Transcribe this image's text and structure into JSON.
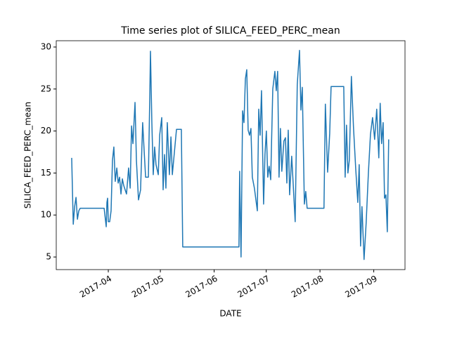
{
  "chart_data": {
    "type": "line",
    "title": "Time series plot of SILICA_FEED_PERC_mean",
    "x_label": "DATE",
    "y_label": "SILICA_FEED_PERC_mean",
    "xlim": [
      61,
      262
    ],
    "xticks": [
      {
        "value": 91,
        "label": "2017-04"
      },
      {
        "value": 121,
        "label": "2017-05"
      },
      {
        "value": 152,
        "label": "2017-06"
      },
      {
        "value": 182,
        "label": "2017-07"
      },
      {
        "value": 213,
        "label": "2017-08"
      },
      {
        "value": 244,
        "label": "2017-09"
      }
    ],
    "ylim": [
      3.5,
      30.75
    ],
    "yticks": [
      5,
      10,
      15,
      20,
      25,
      30
    ],
    "grid": false,
    "x": [
      69.9,
      70.8,
      71.6,
      72.4,
      73.2,
      74,
      74.8,
      88.6,
      89.8,
      90.2,
      90.6,
      91,
      91.8,
      92.6,
      93.4,
      94.2,
      95,
      95.9,
      96.7,
      97.5,
      98.3,
      99.1,
      99.9,
      101.5,
      102.7,
      103.6,
      104.4,
      105.2,
      106.4,
      107.2,
      108.4,
      109.6,
      110.8,
      111.7,
      112.5,
      114.1,
      114.9,
      115.3,
      116.1,
      116.9,
      117.7,
      118.5,
      119.8,
      120.6,
      121.8,
      122.6,
      123.4,
      124.2,
      125,
      126.2,
      127.1,
      127.9,
      130.3,
      133.1,
      133.9,
      166.3,
      166.7,
      167.5,
      168.4,
      169.2,
      170,
      170.8,
      171.6,
      172.4,
      173.2,
      174,
      175.2,
      176.9,
      177.7,
      178.5,
      179.3,
      180.5,
      181.3,
      182.1,
      182.9,
      183.7,
      184.6,
      185.8,
      187,
      187.8,
      188.6,
      189.4,
      190.2,
      191,
      192.2,
      193.1,
      193.9,
      194.7,
      195.5,
      196.7,
      197.5,
      198.7,
      199.9,
      201.2,
      202,
      202.8,
      204,
      204.8,
      205.6,
      215.3,
      216.1,
      217.4,
      218.6,
      219.4,
      226.7,
      227.5,
      228.3,
      229.1,
      229.9,
      231.1,
      232.3,
      233.6,
      234.8,
      235.6,
      236.4,
      237.2,
      238.4,
      239.6,
      240.9,
      242.1,
      243.3,
      244.5,
      245.7,
      246.9,
      247.7,
      248.5,
      249.4,
      250.2,
      251,
      251.8,
      252.6
    ],
    "series": [
      {
        "name": "SILICA_FEED_PERC_mean",
        "color": "#1f77b4",
        "values": [
          16.8,
          8.9,
          11,
          12.1,
          9.5,
          10.5,
          10.8,
          10.8,
          8.6,
          11.5,
          12,
          9.2,
          9.2,
          10.5,
          16.5,
          18.1,
          14,
          15.6,
          13.8,
          14.5,
          12.5,
          14.3,
          13.5,
          12.5,
          15.6,
          13.2,
          20.6,
          18.5,
          23.4,
          16.5,
          11.8,
          13,
          21,
          17.5,
          14.5,
          14.5,
          24,
          29.5,
          21,
          14.8,
          18.1,
          16,
          14.8,
          19.5,
          21.6,
          13,
          17.2,
          13.2,
          21,
          14.8,
          19.3,
          14.8,
          20.2,
          20.2,
          6.2,
          6.2,
          15.2,
          5,
          22.4,
          21,
          26.2,
          27.3,
          20.1,
          19.5,
          20.3,
          14.5,
          13.2,
          10.5,
          22.6,
          19.5,
          24.8,
          11.3,
          17.2,
          20,
          14.5,
          15.8,
          14.2,
          25,
          27.1,
          24.8,
          27.1,
          14.5,
          20.3,
          15.2,
          18.8,
          19.2,
          13.8,
          20.1,
          12.4,
          17,
          13.9,
          9.2,
          25.5,
          29.6,
          22.5,
          25.2,
          11.3,
          12.8,
          10.8,
          10.8,
          23.2,
          15.1,
          19.7,
          25.3,
          25.3,
          14.5,
          20.7,
          15,
          16.5,
          26.5,
          20.5,
          15.5,
          11.5,
          16,
          6.3,
          11,
          4.7,
          9,
          15,
          19.6,
          21.6,
          19,
          22.6,
          16.8,
          23.3,
          18.5,
          21,
          12,
          12.4,
          8,
          19
        ]
      }
    ]
  }
}
